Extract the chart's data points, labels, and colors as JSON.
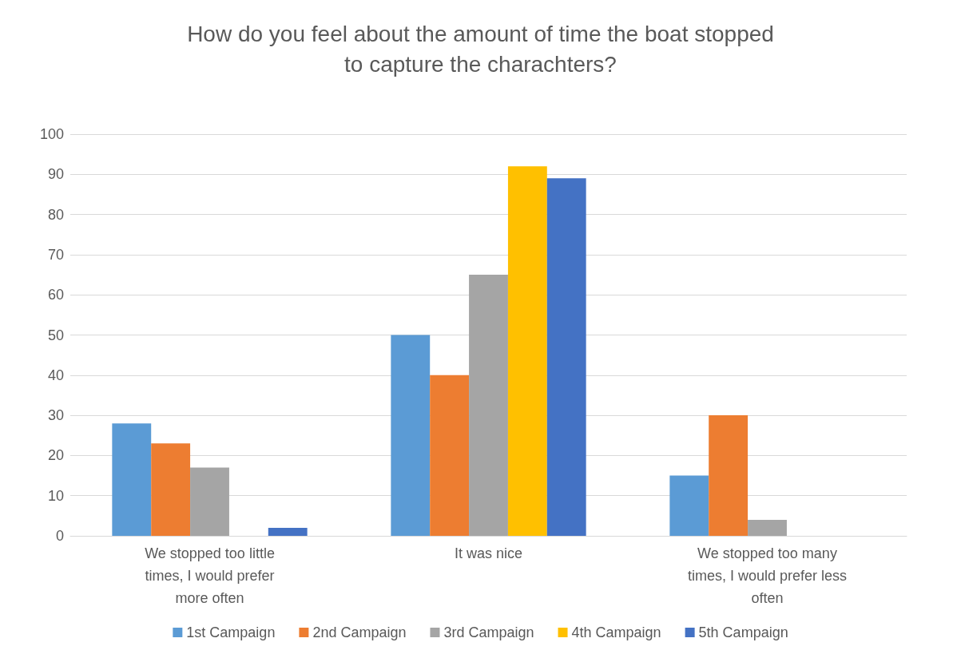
{
  "chart_data": {
    "type": "bar",
    "title": "How do you feel about the amount of time the boat stopped\nto capture the charachters?",
    "categories": [
      "We stopped too little\ntimes, I would prefer\nmore often",
      "It was nice",
      "We stopped too many\ntimes, I would prefer less\noften"
    ],
    "series": [
      {
        "name": "1st Campaign",
        "color": "#5b9bd5",
        "values": [
          28,
          50,
          15
        ]
      },
      {
        "name": "2nd Campaign",
        "color": "#ed7d31",
        "values": [
          23,
          40,
          30
        ]
      },
      {
        "name": "3rd Campaign",
        "color": "#a5a5a5",
        "values": [
          17,
          65,
          4
        ]
      },
      {
        "name": "4th Campaign",
        "color": "#ffc000",
        "values": [
          0,
          92,
          0
        ]
      },
      {
        "name": "5th Campaign",
        "color": "#4472c4",
        "values": [
          2,
          89,
          0
        ]
      }
    ],
    "ylim": [
      0,
      100
    ],
    "yticks": [
      0,
      10,
      20,
      30,
      40,
      50,
      60,
      70,
      80,
      90,
      100
    ],
    "grid": "y",
    "legend": "bottom"
  }
}
